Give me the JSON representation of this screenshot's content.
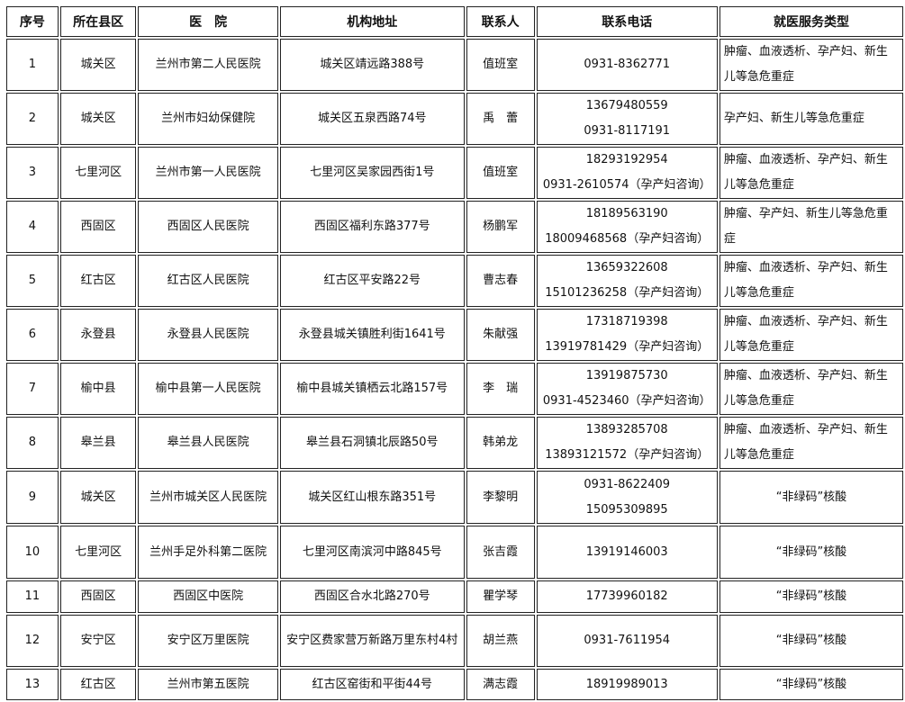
{
  "headers": [
    "序号",
    "所在县区",
    "医　院",
    "机构地址",
    "联系人",
    "联系电话",
    "就医服务类型"
  ],
  "rows": [
    {
      "no": "1",
      "district": "城关区",
      "hospital": "兰州市第二人民医院",
      "address": "城关区靖远路388号",
      "contact": "值班室",
      "phones": [
        "0931-8362771"
      ],
      "service": "肿瘤、血液透析、孕产妇、新生儿等急危重症"
    },
    {
      "no": "2",
      "district": "城关区",
      "hospital": "兰州市妇幼保健院",
      "address": "城关区五泉西路74号",
      "contact": "禹　蕾",
      "phones": [
        "13679480559",
        "0931-8117191"
      ],
      "service": "孕产妇、新生儿等急危重症"
    },
    {
      "no": "3",
      "district": "七里河区",
      "hospital": "兰州市第一人民医院",
      "address": "七里河区吴家园西街1号",
      "contact": "值班室",
      "phones": [
        "18293192954",
        "0931-2610574（孕产妇咨询）"
      ],
      "service": "肿瘤、血液透析、孕产妇、新生儿等急危重症"
    },
    {
      "no": "4",
      "district": "西固区",
      "hospital": "西固区人民医院",
      "address": "西固区福利东路377号",
      "contact": "杨鹏军",
      "phones": [
        "18189563190",
        "18009468568（孕产妇咨询）"
      ],
      "service": "肿瘤、孕产妇、新生儿等急危重症"
    },
    {
      "no": "5",
      "district": "红古区",
      "hospital": "红古区人民医院",
      "address": "红古区平安路22号",
      "contact": "曹志春",
      "phones": [
        "13659322608",
        "15101236258（孕产妇咨询）"
      ],
      "service": "肿瘤、血液透析、孕产妇、新生儿等急危重症"
    },
    {
      "no": "6",
      "district": "永登县",
      "hospital": "永登县人民医院",
      "address": "永登县城关镇胜利街1641号",
      "contact": "朱献强",
      "phones": [
        "17318719398",
        "13919781429（孕产妇咨询）"
      ],
      "service": "肿瘤、血液透析、孕产妇、新生儿等急危重症"
    },
    {
      "no": "7",
      "district": "榆中县",
      "hospital": "榆中县第一人民医院",
      "address": "榆中县城关镇栖云北路157号",
      "contact": "李　瑞",
      "phones": [
        "13919875730",
        "0931-4523460（孕产妇咨询）"
      ],
      "service": "肿瘤、血液透析、孕产妇、新生儿等急危重症"
    },
    {
      "no": "8",
      "district": "皋兰县",
      "hospital": "皋兰县人民医院",
      "address": "皋兰县石洞镇北辰路50号",
      "contact": "韩弟龙",
      "phones": [
        "13893285708",
        "13893121572（孕产妇咨询）"
      ],
      "service": "肿瘤、血液透析、孕产妇、新生儿等急危重症"
    },
    {
      "no": "9",
      "district": "城关区",
      "hospital": "兰州市城关区人民医院",
      "address": "城关区红山根东路351号",
      "contact": "李黎明",
      "phones": [
        "0931-8622409",
        "15095309895"
      ],
      "service": "“非绿码”核酸"
    },
    {
      "no": "10",
      "district": "七里河区",
      "hospital": "兰州手足外科第二医院",
      "address": "七里河区南滨河中路845号",
      "contact": "张吉霞",
      "phones": [
        "13919146003"
      ],
      "service": "“非绿码”核酸"
    },
    {
      "no": "11",
      "district": "西固区",
      "hospital": "西固区中医院",
      "address": "西固区合水北路270号",
      "contact": "瞿学琴",
      "phones": [
        "17739960182"
      ],
      "service": "“非绿码”核酸"
    },
    {
      "no": "12",
      "district": "安宁区",
      "hospital": "安宁区万里医院",
      "address": "安宁区费家营万新路万里东村4村",
      "contact": "胡兰燕",
      "phones": [
        "0931-7611954"
      ],
      "service": "“非绿码”核酸"
    },
    {
      "no": "13",
      "district": "红古区",
      "hospital": "兰州市第五医院",
      "address": "红古区窑街和平街44号",
      "contact": "满志霞",
      "phones": [
        "18919989013"
      ],
      "service": "“非绿码”核酸"
    }
  ]
}
